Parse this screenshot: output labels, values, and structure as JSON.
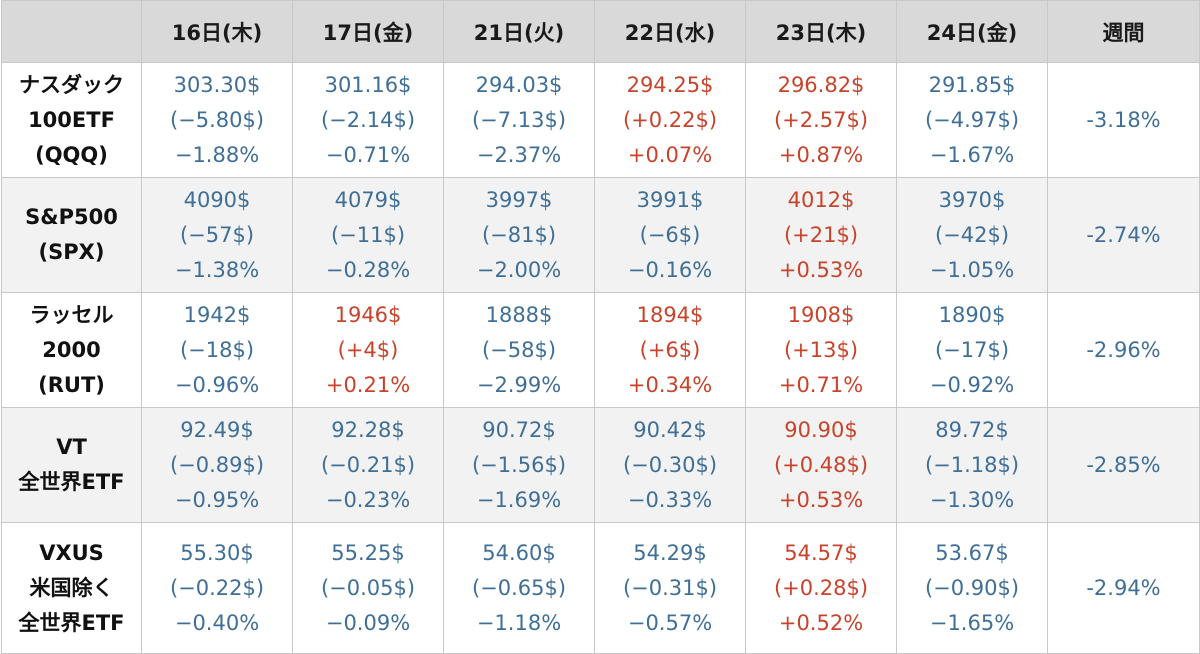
{
  "header": {
    "corner": "",
    "days": [
      "16日(木)",
      "17日(金)",
      "21日(火)",
      "22日(水)",
      "23日(木)",
      "24日(金)"
    ],
    "week": "週間"
  },
  "rows": [
    {
      "label": [
        "ナスダック",
        "100ETF",
        "(QQQ)"
      ],
      "cells": [
        {
          "price": "303.30$",
          "change": "(−5.80$)",
          "pct": "−1.88%",
          "dir": "down"
        },
        {
          "price": "301.16$",
          "change": "(−2.14$)",
          "pct": "−0.71%",
          "dir": "down"
        },
        {
          "price": "294.03$",
          "change": "(−7.13$)",
          "pct": "−2.37%",
          "dir": "down"
        },
        {
          "price": "294.25$",
          "change": "(+0.22$)",
          "pct": "+0.07%",
          "dir": "up"
        },
        {
          "price": "296.82$",
          "change": "(+2.57$)",
          "pct": "+0.87%",
          "dir": "up"
        },
        {
          "price": "291.85$",
          "change": "(−4.97$)",
          "pct": "−1.67%",
          "dir": "down"
        }
      ],
      "week": "-3.18%"
    },
    {
      "label": [
        "S&P500",
        "(SPX)"
      ],
      "cells": [
        {
          "price": "4090$",
          "change": "(−57$)",
          "pct": "−1.38%",
          "dir": "down"
        },
        {
          "price": "4079$",
          "change": "(−11$)",
          "pct": "−0.28%",
          "dir": "down"
        },
        {
          "price": "3997$",
          "change": "(−81$)",
          "pct": "−2.00%",
          "dir": "down"
        },
        {
          "price": "3991$",
          "change": "(−6$)",
          "pct": "−0.16%",
          "dir": "down"
        },
        {
          "price": "4012$",
          "change": "(+21$)",
          "pct": "+0.53%",
          "dir": "up"
        },
        {
          "price": "3970$",
          "change": "(−42$)",
          "pct": "−1.05%",
          "dir": "down"
        }
      ],
      "week": "-2.74%"
    },
    {
      "label": [
        "ラッセル",
        "2000",
        "(RUT)"
      ],
      "cells": [
        {
          "price": "1942$",
          "change": "(−18$)",
          "pct": "−0.96%",
          "dir": "down"
        },
        {
          "price": "1946$",
          "change": "(+4$)",
          "pct": "+0.21%",
          "dir": "up"
        },
        {
          "price": "1888$",
          "change": "(−58$)",
          "pct": "−2.99%",
          "dir": "down"
        },
        {
          "price": "1894$",
          "change": "(+6$)",
          "pct": "+0.34%",
          "dir": "up"
        },
        {
          "price": "1908$",
          "change": "(+13$)",
          "pct": "+0.71%",
          "dir": "up"
        },
        {
          "price": "1890$",
          "change": "(−17$)",
          "pct": "−0.92%",
          "dir": "down"
        }
      ],
      "week": "-2.96%"
    },
    {
      "label": [
        "VT",
        "全世界ETF"
      ],
      "cells": [
        {
          "price": "92.49$",
          "change": "(−0.89$)",
          "pct": "−0.95%",
          "dir": "down"
        },
        {
          "price": "92.28$",
          "change": "(−0.21$)",
          "pct": "−0.23%",
          "dir": "down"
        },
        {
          "price": "90.72$",
          "change": "(−1.56$)",
          "pct": "−1.69%",
          "dir": "down"
        },
        {
          "price": "90.42$",
          "change": "(−0.30$)",
          "pct": "−0.33%",
          "dir": "down"
        },
        {
          "price": "90.90$",
          "change": "(+0.48$)",
          "pct": "+0.53%",
          "dir": "up"
        },
        {
          "price": "89.72$",
          "change": "(−1.18$)",
          "pct": "−1.30%",
          "dir": "down"
        }
      ],
      "week": "-2.85%"
    },
    {
      "label": [
        "VXUS",
        "米国除く",
        "全世界ETF"
      ],
      "cells": [
        {
          "price": "55.30$",
          "change": "(−0.22$)",
          "pct": "−0.40%",
          "dir": "down"
        },
        {
          "price": "55.25$",
          "change": "(−0.05$)",
          "pct": "−0.09%",
          "dir": "down"
        },
        {
          "price": "54.60$",
          "change": "(−0.65$)",
          "pct": "−1.18%",
          "dir": "down"
        },
        {
          "price": "54.29$",
          "change": "(−0.31$)",
          "pct": "−0.57%",
          "dir": "down"
        },
        {
          "price": "54.57$",
          "change": "(+0.28$)",
          "pct": "+0.52%",
          "dir": "up"
        },
        {
          "price": "53.67$",
          "change": "(−0.90$)",
          "pct": "−1.65%",
          "dir": "down"
        }
      ],
      "week": "-2.94%"
    }
  ],
  "colors": {
    "up": "#c8432b",
    "down": "#3f6f96",
    "header_bg": "#d9d9d9",
    "stripe_bg": "#f2f2f2",
    "border": "#c8c8c8"
  }
}
